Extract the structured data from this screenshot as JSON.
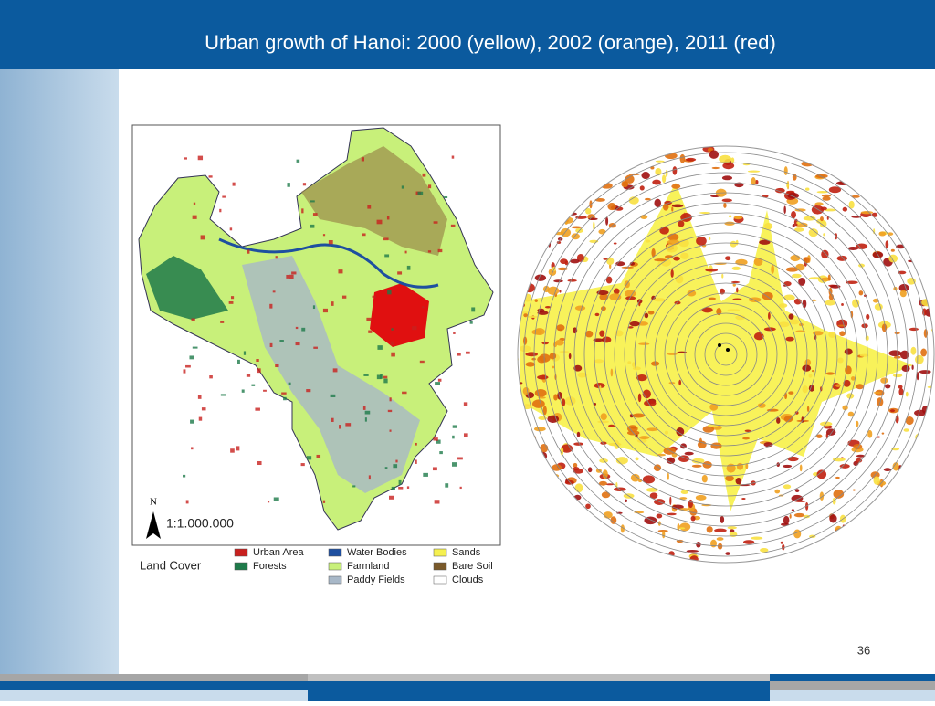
{
  "header": {
    "title": "Urban growth of Hanoi: 2000 (yellow), 2002 (orange), 2011 (red)"
  },
  "map": {
    "north_label": "N",
    "scale": "1:1.000.000",
    "legend_title": "Land Cover",
    "legend": [
      {
        "label": "Urban Area",
        "color": "#c8201e"
      },
      {
        "label": "Forests",
        "color": "#1e7a4a"
      },
      {
        "label": "Water Bodies",
        "color": "#1e4fa0"
      },
      {
        "label": "Farmland",
        "color": "#c8f07a"
      },
      {
        "label": "Paddy Fields",
        "color": "#a8b8c8"
      },
      {
        "label": "Sands",
        "color": "#f5f050"
      },
      {
        "label": "Bare Soil",
        "color": "#7a5a2a"
      },
      {
        "label": "Clouds",
        "color": "#ffffff"
      }
    ]
  },
  "footer": {
    "page_number": "36"
  }
}
